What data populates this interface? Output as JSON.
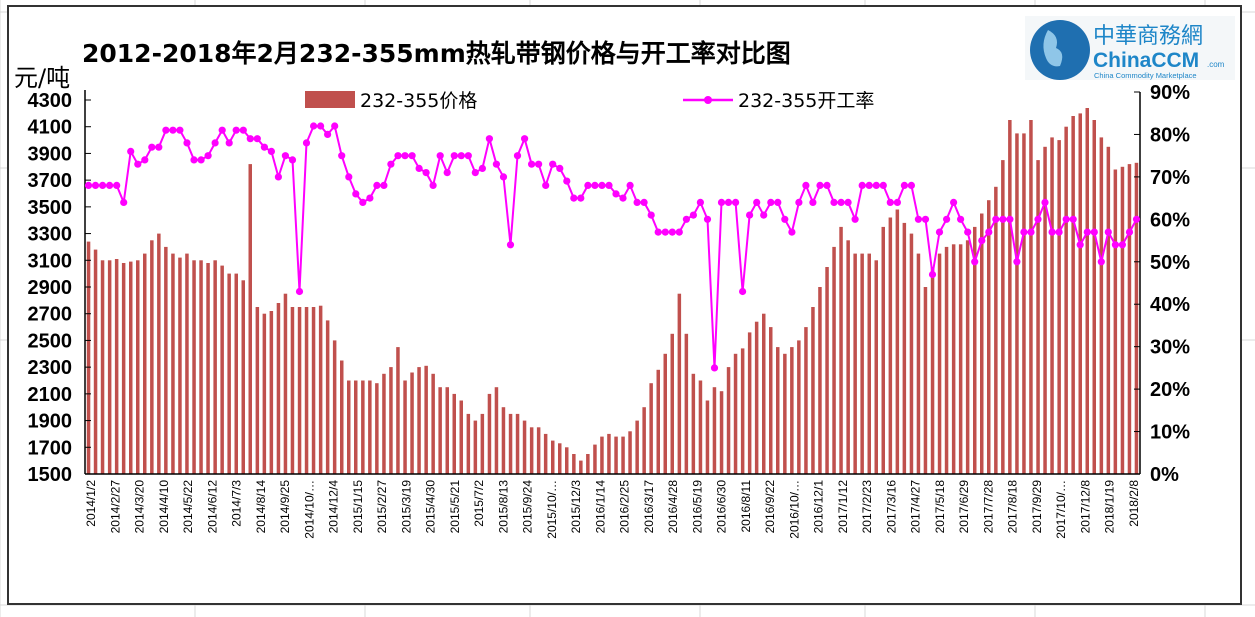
{
  "chart_data": {
    "type": "bar+line",
    "title": "2012-2018年2月232-355mm热轧带钢价格与开工率对比图",
    "ylabel_left": "元/吨",
    "ylim_left": [
      1500,
      4300
    ],
    "yticks_left": [
      "1500",
      "1700",
      "1900",
      "2100",
      "2300",
      "2500",
      "2700",
      "2900",
      "3100",
      "3300",
      "3500",
      "3700",
      "3900",
      "4100",
      "4300"
    ],
    "ylim_right": [
      0,
      90
    ],
    "yticks_right": [
      "0%",
      "10%",
      "20%",
      "30%",
      "40%",
      "50%",
      "60%",
      "70%",
      "80%",
      "90%"
    ],
    "legend": {
      "bar": "232-355价格",
      "line": "232-355开工率",
      "position": "top"
    },
    "colors": {
      "bar": "#c0504d",
      "line": "#ff00ff"
    },
    "x_tick_labels": [
      "2014/1/2",
      "2014/2/27",
      "2014/3/20",
      "2014/4/10",
      "2014/5/22",
      "2014/6/12",
      "2014/7/3",
      "2014/8/14",
      "2014/9/25",
      "2014/10/…",
      "2014/12/4",
      "2015/1/15",
      "2015/2/27",
      "2015/3/19",
      "2015/4/30",
      "2015/5/21",
      "2015/7/2",
      "2015/8/13",
      "2015/9/24",
      "2015/10/…",
      "2015/12/3",
      "2016/1/14",
      "2016/2/25",
      "2016/3/17",
      "2016/4/28",
      "2016/5/19",
      "2016/6/30",
      "2016/8/11",
      "2016/9/22",
      "2016/10/…",
      "2016/12/1",
      "2017/1/12",
      "2017/2/23",
      "2017/3/16",
      "2017/4/27",
      "2017/5/18",
      "2017/6/29",
      "2017/7/28",
      "2017/8/18",
      "2017/9/29",
      "2017/10/…",
      "2017/12/8",
      "2018/1/19",
      "2018/2/8"
    ],
    "series": [
      {
        "name": "232-355价格",
        "type": "bar",
        "axis": "left",
        "values": [
          3240,
          3180,
          3100,
          3100,
          3110,
          3080,
          3090,
          3100,
          3150,
          3250,
          3300,
          3200,
          3150,
          3120,
          3150,
          3100,
          3100,
          3080,
          3100,
          3060,
          3000,
          3000,
          2950,
          3820,
          2750,
          2700,
          2720,
          2780,
          2850,
          2750,
          2750,
          2750,
          2750,
          2760,
          2650,
          2500,
          2350,
          2200,
          2200,
          2200,
          2200,
          2180,
          2250,
          2300,
          2450,
          2200,
          2260,
          2300,
          2310,
          2250,
          2150,
          2150,
          2100,
          2050,
          1950,
          1900,
          1950,
          2100,
          2150,
          2000,
          1950,
          1950,
          1900,
          1850,
          1850,
          1800,
          1750,
          1730,
          1700,
          1650,
          1600,
          1650,
          1720,
          1780,
          1800,
          1780,
          1780,
          1820,
          1900,
          2000,
          2180,
          2280,
          2400,
          2550,
          2850,
          2550,
          2250,
          2200,
          2050,
          2150,
          2120,
          2300,
          2400,
          2440,
          2560,
          2640,
          2700,
          2600,
          2450,
          2400,
          2450,
          2500,
          2600,
          2750,
          2900,
          3050,
          3200,
          3350,
          3250,
          3150,
          3150,
          3150,
          3100,
          3350,
          3420,
          3480,
          3380,
          3300,
          3150,
          2900,
          3050,
          3150,
          3200,
          3220,
          3220,
          3250,
          3350,
          3450,
          3550,
          3650,
          3850,
          4150,
          4050,
          4050,
          4150,
          3850,
          3950,
          4020,
          4000,
          4100,
          4180,
          4200,
          4240,
          4150,
          4020,
          3950,
          3780,
          3800,
          3820,
          3830
        ]
      },
      {
        "name": "232-355开工率",
        "type": "line",
        "axis": "right",
        "unit": "%",
        "values": [
          68,
          68,
          68,
          68,
          68,
          64,
          76,
          73,
          74,
          77,
          77,
          81,
          81,
          81,
          78,
          74,
          74,
          75,
          78,
          81,
          78,
          81,
          81,
          79,
          79,
          77,
          76,
          70,
          75,
          74,
          43,
          78,
          82,
          82,
          80,
          82,
          75,
          70,
          66,
          64,
          65,
          68,
          68,
          73,
          75,
          75,
          75,
          72,
          71,
          68,
          75,
          71,
          75,
          75,
          75,
          71,
          72,
          79,
          73,
          70,
          54,
          75,
          79,
          73,
          73,
          68,
          73,
          72,
          69,
          65,
          65,
          68,
          68,
          68,
          68,
          66,
          65,
          68,
          64,
          64,
          61,
          57,
          57,
          57,
          57,
          60,
          61,
          64,
          60,
          25,
          64,
          64,
          64,
          43,
          61,
          64,
          61,
          64,
          64,
          60,
          57,
          64,
          68,
          64,
          68,
          68,
          64,
          64,
          64,
          60,
          68,
          68,
          68,
          68,
          64,
          64,
          68,
          68,
          60,
          60,
          47,
          57,
          60,
          64,
          60,
          57,
          50,
          55,
          57,
          60,
          60,
          60,
          50,
          57,
          57,
          60,
          64,
          57,
          57,
          60,
          60,
          54,
          57,
          57,
          50,
          57,
          54,
          54,
          57,
          60
        ]
      }
    ]
  },
  "logo": {
    "cn": "中華商務網",
    "en": "ChinaCCM",
    "suffix": ".com",
    "tagline": "China Commodity Marketplace"
  }
}
